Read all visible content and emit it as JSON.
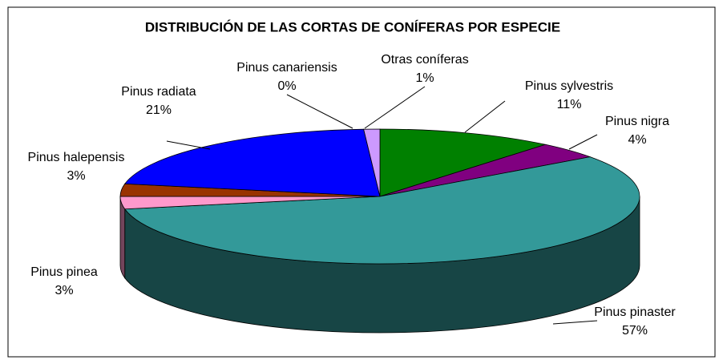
{
  "chart_data": {
    "type": "pie3d",
    "title": "DISTRIBUCIÓN DE LAS CORTAS DE CONÍFERAS POR ESPECIE",
    "categories": [
      "Pinus sylvestris",
      "Pinus nigra",
      "Pinus pinaster",
      "Pinus pinea",
      "Pinus halepensis",
      "Pinus radiata",
      "Pinus canariensis",
      "Otras coníferas"
    ],
    "values": [
      11,
      4,
      57,
      3,
      3,
      21,
      0,
      1
    ],
    "value_labels": [
      "11%",
      "4%",
      "57%",
      "3%",
      "3%",
      "21%",
      "0%",
      "1%"
    ],
    "colors": [
      "#008000",
      "#800080",
      "#339999",
      "#FF99CC",
      "#993300",
      "#0000FF",
      "#000080",
      "#CC99FF"
    ]
  }
}
